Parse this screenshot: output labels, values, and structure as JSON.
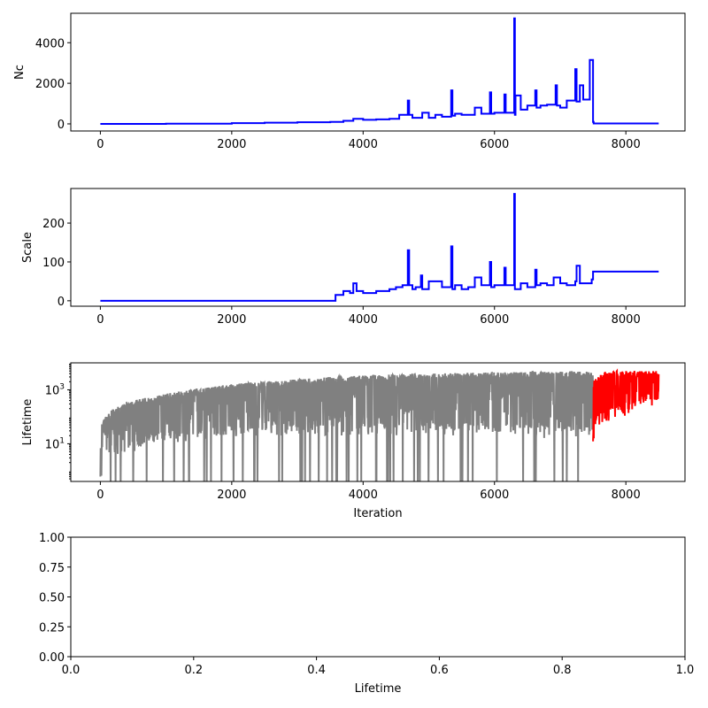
{
  "chart_data": [
    {
      "type": "line",
      "ylabel": "Nc",
      "xlabel": "",
      "xlim": [
        -450,
        8900
      ],
      "ylim": [
        -350,
        5450
      ],
      "x_ticks": [
        0,
        2000,
        4000,
        6000,
        8000
      ],
      "x_tick_labels": [
        "0",
        "2000",
        "4000",
        "6000",
        "8000"
      ],
      "y_ticks": [
        0,
        2000,
        4000
      ],
      "y_tick_labels": [
        "0",
        "2000",
        "4000"
      ],
      "line_style": "steps",
      "series": [
        {
          "color": "#0000ff",
          "x": [
            0,
            1000,
            2000,
            2500,
            3000,
            3500,
            3570,
            3700,
            3850,
            4000,
            4200,
            4400,
            4550,
            4680,
            4700,
            4750,
            4900,
            5000,
            5100,
            5200,
            5340,
            5360,
            5400,
            5500,
            5700,
            5800,
            5930,
            5950,
            6000,
            6150,
            6170,
            6300,
            6310,
            6320,
            6400,
            6500,
            6620,
            6640,
            6700,
            6800,
            6930,
            6950,
            7000,
            7100,
            7230,
            7250,
            7300,
            7350,
            7450,
            7500,
            7510,
            8500
          ],
          "y": [
            0,
            10,
            40,
            60,
            80,
            100,
            100,
            150,
            250,
            200,
            220,
            250,
            450,
            1150,
            450,
            300,
            550,
            300,
            450,
            350,
            1650,
            400,
            500,
            450,
            800,
            500,
            1550,
            500,
            550,
            1450,
            550,
            5200,
            450,
            1400,
            700,
            900,
            1650,
            800,
            900,
            950,
            1900,
            900,
            800,
            1150,
            2700,
            1100,
            1900,
            1200,
            3150,
            100,
            20,
            20
          ]
        }
      ]
    },
    {
      "type": "line",
      "ylabel": "Scale",
      "xlabel": "",
      "xlim": [
        -450,
        8900
      ],
      "ylim": [
        -14,
        289
      ],
      "x_ticks": [
        0,
        2000,
        4000,
        6000,
        8000
      ],
      "x_tick_labels": [
        "0",
        "2000",
        "4000",
        "6000",
        "8000"
      ],
      "y_ticks": [
        0,
        100,
        200
      ],
      "y_tick_labels": [
        "0",
        "100",
        "200"
      ],
      "line_style": "steps",
      "series": [
        {
          "color": "#0000ff",
          "x": [
            0,
            3560,
            3580,
            3700,
            3800,
            3850,
            3900,
            4000,
            4200,
            4400,
            4500,
            4600,
            4680,
            4700,
            4750,
            4800,
            4880,
            4900,
            5000,
            5200,
            5340,
            5360,
            5400,
            5500,
            5600,
            5700,
            5800,
            5930,
            5950,
            6000,
            6150,
            6170,
            6300,
            6310,
            6400,
            6500,
            6620,
            6640,
            6700,
            6800,
            6900,
            7000,
            7100,
            7230,
            7250,
            7300,
            7480,
            7500,
            8500
          ],
          "y": [
            0,
            0,
            15,
            25,
            20,
            45,
            25,
            20,
            25,
            30,
            35,
            40,
            130,
            40,
            30,
            35,
            65,
            30,
            50,
            35,
            140,
            30,
            40,
            30,
            35,
            60,
            40,
            100,
            35,
            40,
            85,
            40,
            275,
            30,
            45,
            35,
            80,
            40,
            45,
            40,
            60,
            45,
            40,
            50,
            90,
            45,
            55,
            75,
            75
          ]
        }
      ]
    },
    {
      "type": "line",
      "ylabel": "Lifetime",
      "xlabel": "Iteration",
      "xlim": [
        -450,
        8900
      ],
      "ylim": [
        0.4,
        10000
      ],
      "y_scale": "log",
      "x_ticks": [
        0,
        2000,
        4000,
        6000,
        8000
      ],
      "x_tick_labels": [
        "0",
        "2000",
        "4000",
        "6000",
        "8000"
      ],
      "y_ticks": [
        10,
        1000
      ],
      "y_tick_labels": [
        "10^1",
        "10^3"
      ],
      "series": [
        {
          "color": "#808080",
          "description": "upper envelope grows as ~iteration; dense oscillation to low values",
          "x_range": [
            0,
            7500
          ],
          "upper_envelope": [
            [
              1,
              1
            ],
            [
              20,
              50
            ],
            [
              200,
              200
            ],
            [
              500,
              400
            ],
            [
              1000,
              700
            ],
            [
              2000,
              1600
            ],
            [
              3000,
              2500
            ],
            [
              4000,
              3500
            ],
            [
              5000,
              4000
            ],
            [
              6000,
              4500
            ],
            [
              7000,
              4800
            ],
            [
              7500,
              5000
            ]
          ],
          "lower_envelope": [
            [
              0,
              0.4
            ],
            [
              100,
              5
            ],
            [
              500,
              10
            ],
            [
              1000,
              20
            ],
            [
              2000,
              30
            ],
            [
              3000,
              40
            ],
            [
              4000,
              40
            ],
            [
              5000,
              40
            ],
            [
              6000,
              40
            ],
            [
              7000,
              30
            ],
            [
              7500,
              30
            ]
          ]
        },
        {
          "color": "#ff0000",
          "description": "last 1000 iterations",
          "x_range": [
            7500,
            8500
          ],
          "upper_envelope": [
            [
              7500,
              2000
            ],
            [
              7700,
              5000
            ],
            [
              8000,
              5000
            ],
            [
              8500,
              5000
            ]
          ],
          "lower_envelope": [
            [
              7500,
              20
            ],
            [
              7600,
              100
            ],
            [
              8000,
              200
            ],
            [
              8500,
              600
            ]
          ]
        }
      ]
    },
    {
      "type": "line",
      "ylabel": "",
      "xlabel": "Lifetime",
      "xlim": [
        0,
        1
      ],
      "ylim": [
        0,
        1
      ],
      "x_ticks": [
        0,
        0.2,
        0.4,
        0.6,
        0.8,
        1
      ],
      "x_tick_labels": [
        "0.0",
        "0.2",
        "0.4",
        "0.6",
        "0.8",
        "1.0"
      ],
      "y_ticks": [
        0,
        0.25,
        0.5,
        0.75,
        1
      ],
      "y_tick_labels": [
        "0.00",
        "0.25",
        "0.50",
        "0.75",
        "1.00"
      ],
      "series": []
    }
  ]
}
